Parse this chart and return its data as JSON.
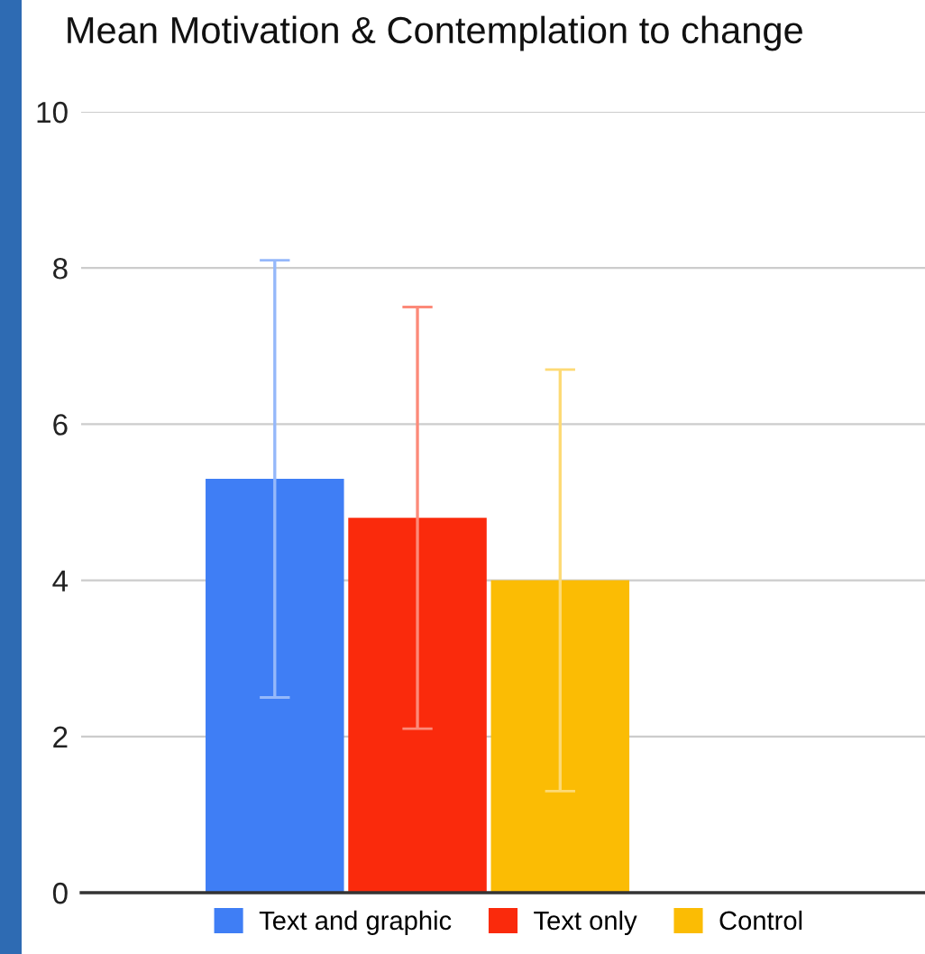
{
  "chart_data": {
    "type": "bar",
    "title": "Mean Motivation & Contemplation to change",
    "categories": [
      null
    ],
    "series": [
      {
        "name": "Text and graphic",
        "color": "#3f7ef5",
        "values": [
          5.3
        ],
        "errors": [
          2.8
        ]
      },
      {
        "name": "Text only",
        "color": "#fa2a0c",
        "values": [
          4.8
        ],
        "errors": [
          2.7
        ]
      },
      {
        "name": "Control",
        "color": "#fbbc04",
        "values": [
          4.0
        ],
        "errors": [
          2.7
        ]
      }
    ],
    "ylim": [
      0,
      10
    ],
    "yticks": [
      0,
      2,
      4,
      6,
      8,
      10
    ],
    "grid": "y",
    "legend": "bottom"
  }
}
